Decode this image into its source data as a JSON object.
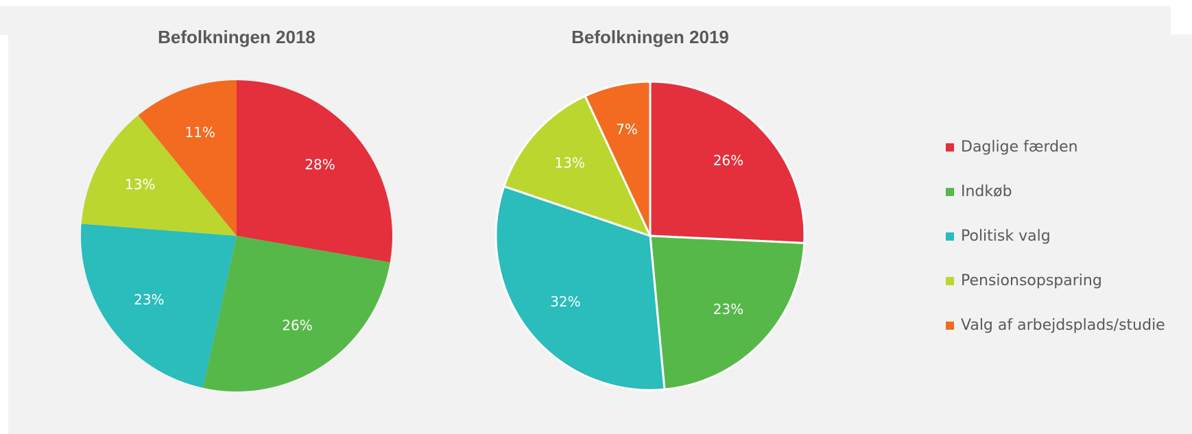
{
  "chart_data": [
    {
      "type": "pie",
      "title": "Befolkningen 2018",
      "categories": [
        "Daglige færden",
        "Indkøb",
        "Politisk valg",
        "Pensionsopsparing",
        "Valg af arbejdsplads/studie"
      ],
      "values": [
        28,
        26,
        23,
        13,
        11
      ],
      "value_labels": [
        "28%",
        "26%",
        "23%",
        "13%",
        "11%"
      ],
      "colors": [
        "#e3303c",
        "#57b84a",
        "#2bbcbc",
        "#bcd630",
        "#f26b21"
      ],
      "legend": "right"
    },
    {
      "type": "pie",
      "title": "Befolkningen 2019",
      "categories": [
        "Daglige færden",
        "Indkøb",
        "Politisk valg",
        "Pensionsopsparing",
        "Valg af arbejdsplads/studie"
      ],
      "values": [
        26,
        23,
        32,
        13,
        7
      ],
      "value_labels": [
        "26%",
        "23%",
        "32%",
        "13%",
        "7%"
      ],
      "colors": [
        "#e3303c",
        "#57b84a",
        "#2bbcbc",
        "#bcd630",
        "#f26b21"
      ],
      "edgecolor": "#ffffff"
    }
  ]
}
